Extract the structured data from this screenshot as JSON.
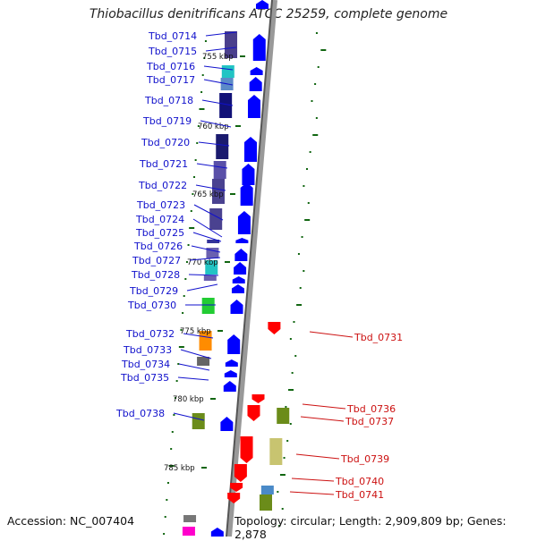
{
  "title": "Thiobacillus denitrificans ATCC 25259, complete genome",
  "footer": {
    "accession": "Accession: NC_007404",
    "summary": "Topology: circular; Length: 2,909,809 bp; Genes: 2,878"
  },
  "colors": {
    "label_left": "#1111cc",
    "label_right": "#cc1111",
    "gene_forward": "#0000ff",
    "gene_reverse": "#ff0000",
    "tick": "#116611",
    "dot": "#119911"
  },
  "kbp_markers": [
    "755 kbp",
    "760 kbp",
    "765 kbp",
    "770 kbp",
    "775 kbp",
    "780 kbp",
    "785 kbp"
  ],
  "left_labels": [
    "Tbd_0714",
    "Tbd_0715",
    "Tbd_0716",
    "Tbd_0717",
    "Tbd_0718",
    "Tbd_0719",
    "Tbd_0720",
    "Tbd_0721",
    "Tbd_0722",
    "Tbd_0723",
    "Tbd_0724",
    "Tbd_0725",
    "Tbd_0726",
    "Tbd_0727",
    "Tbd_0728",
    "Tbd_0729",
    "Tbd_0730",
    "Tbd_0732",
    "Tbd_0733",
    "Tbd_0734",
    "Tbd_0735",
    "Tbd_0738"
  ],
  "right_labels": [
    "Tbd_0731",
    "Tbd_0736",
    "Tbd_0737",
    "Tbd_0739",
    "Tbd_0740",
    "Tbd_0741"
  ]
}
